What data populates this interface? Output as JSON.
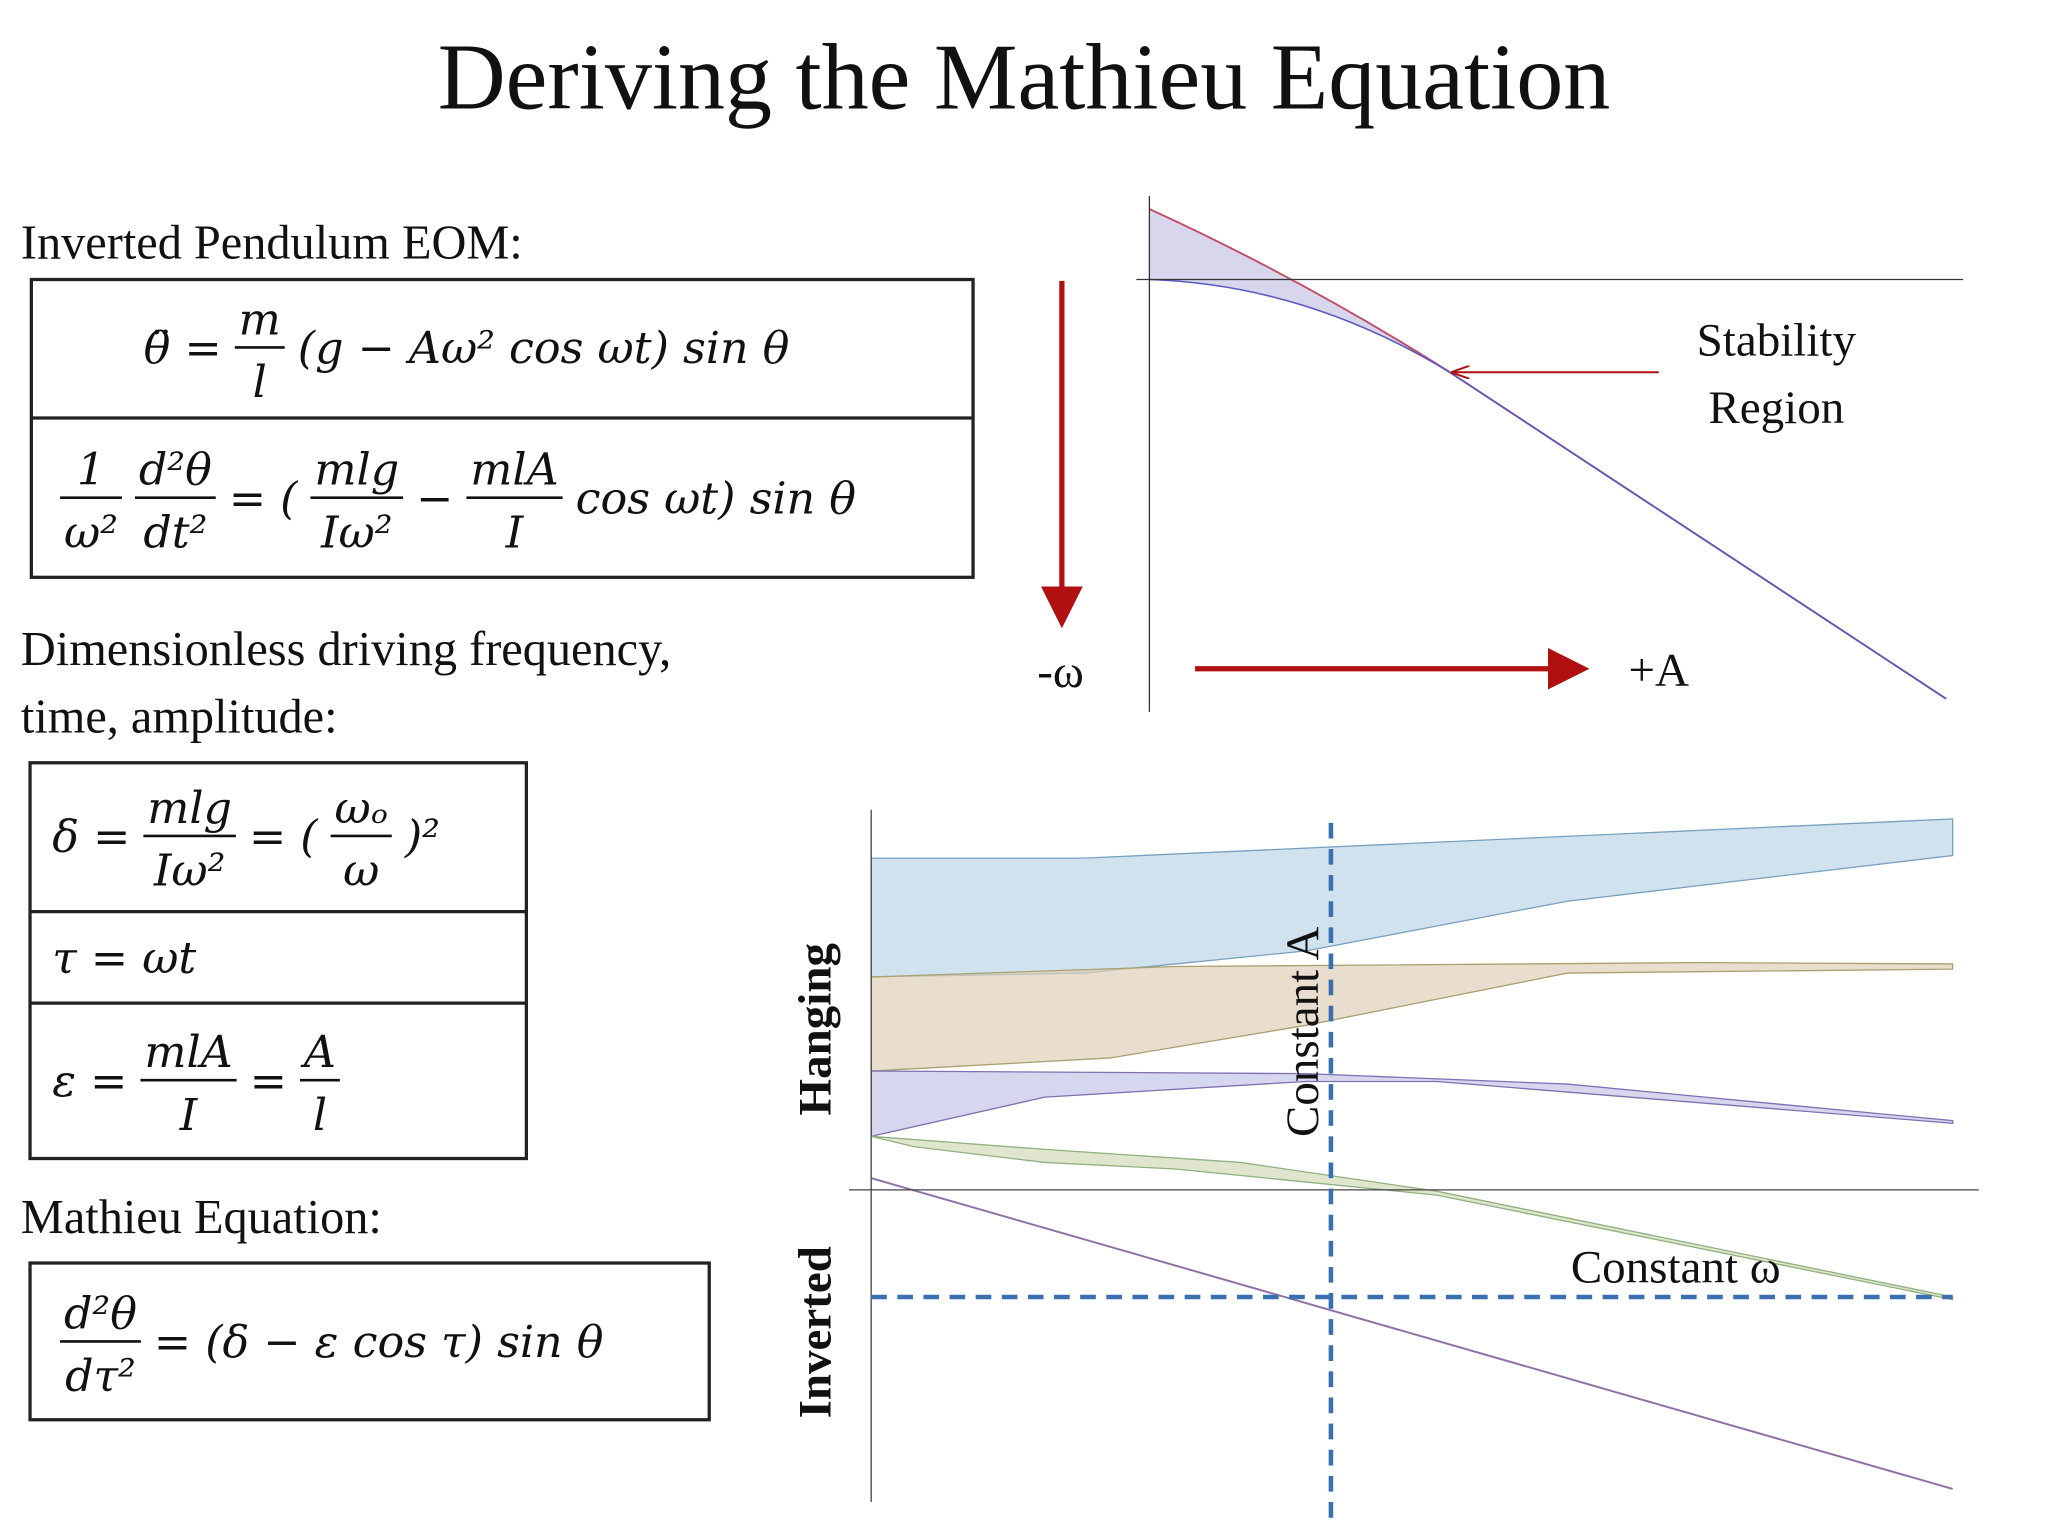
{
  "title": "Deriving the Mathieu Equation",
  "labels": {
    "eom": "Inverted Pendulum EOM:",
    "dimensionless_1": "Dimensionless driving frequency,",
    "dimensionless_2": "time, amplitude:",
    "mathieu": "Mathieu Equation:"
  },
  "boxes": [
    {
      "rows": [
        [
          "θ̈ =",
          {
            "num": "m",
            "den": "l"
          },
          "(g − Aω² cos ωt) sin θ"
        ],
        [
          {
            "num": "1",
            "den": "ω²"
          },
          {
            "num": "d²θ",
            "den": "dt²"
          },
          "=  (",
          {
            "num": "mlg",
            "den": "Iω²"
          },
          "−",
          {
            "num": "mlA",
            "den": "I"
          },
          "cos ωt) sin θ"
        ]
      ]
    },
    {
      "rows": [
        [
          "δ =",
          {
            "num": "mlg",
            "den": "Iω²"
          },
          "= (",
          {
            "num": "ωₒ",
            "den": "ω"
          },
          ")²"
        ],
        [
          "τ = ωt"
        ],
        [
          "ε =",
          {
            "num": "mlA",
            "den": "I"
          },
          "=",
          {
            "num": "A",
            "den": "l"
          }
        ]
      ]
    },
    {
      "rows": [
        [
          {
            "num": "d²θ",
            "den": "dτ²"
          },
          "=  (δ − ε cos τ) sin θ"
        ]
      ]
    }
  ],
  "top_plot": {
    "y_label": "-ω",
    "x_label": "+A",
    "annotation": [
      "Stability",
      "Region"
    ]
  },
  "bottom_plot": {
    "hanging": "Hanging",
    "inverted": "Inverted",
    "constant_A": "Constant A",
    "constant_omega": "Constant ω"
  }
}
